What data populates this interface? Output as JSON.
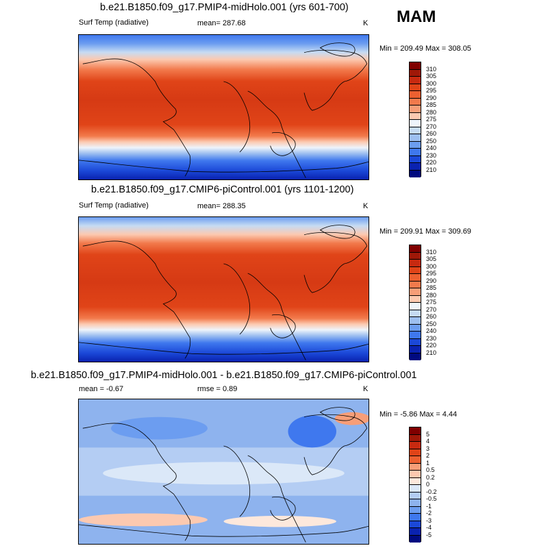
{
  "season": "MAM",
  "panels": [
    {
      "title": "b.e21.B1850.f09_g17.PMIP4-midHolo.001 (yrs 601-700)",
      "variable": "Surf Temp (radiative)",
      "mean_label": "mean= 287.68",
      "rmse_label": "",
      "units": "K",
      "minmax": "Min = 209.49 Max = 308.05",
      "colorbar_labels": [
        "310",
        "305",
        "300",
        "295",
        "290",
        "285",
        "280",
        "275",
        "270",
        "260",
        "250",
        "240",
        "230",
        "220",
        "210"
      ],
      "colors": [
        "#800000",
        "#a01808",
        "#c82a10",
        "#e04418",
        "#ec6030",
        "#f27a4c",
        "#f79e78",
        "#fcc9b0",
        "#eef4fb",
        "#c6dbf3",
        "#9dbff0",
        "#6c9df0",
        "#3f78ee",
        "#1b48d8",
        "#0a22b0",
        "#000a80"
      ]
    },
    {
      "title": "b.e21.B1850.f09_g17.CMIP6-piControl.001 (yrs 1101-1200)",
      "variable": "Surf Temp (radiative)",
      "mean_label": "mean= 288.35",
      "rmse_label": "",
      "units": "K",
      "minmax": "Min = 209.91 Max = 309.69",
      "colorbar_labels": [
        "310",
        "305",
        "300",
        "295",
        "290",
        "285",
        "280",
        "275",
        "270",
        "260",
        "250",
        "240",
        "230",
        "220",
        "210"
      ],
      "colors": [
        "#800000",
        "#a01808",
        "#c82a10",
        "#e04418",
        "#ec6030",
        "#f27a4c",
        "#f79e78",
        "#fcc9b0",
        "#eef4fb",
        "#c6dbf3",
        "#9dbff0",
        "#6c9df0",
        "#3f78ee",
        "#1b48d8",
        "#0a22b0",
        "#000a80"
      ]
    },
    {
      "title": "b.e21.B1850.f09_g17.PMIP4-midHolo.001 - b.e21.B1850.f09_g17.CMIP6-piControl.001",
      "variable": "",
      "mean_label": "mean =  -0.67",
      "rmse_label": "rmse =   0.89",
      "units": "K",
      "minmax": "Min =  -5.86 Max =   4.44",
      "colorbar_labels": [
        "5",
        "4",
        "3",
        "2",
        "1",
        "0.5",
        "0.2",
        "0",
        "-0.2",
        "-0.5",
        "-1",
        "-2",
        "-3",
        "-4",
        "-5"
      ],
      "colors": [
        "#800000",
        "#a01808",
        "#c82a10",
        "#e04418",
        "#ec6030",
        "#f79e78",
        "#fcc9b0",
        "#fde8dc",
        "#dbe8f8",
        "#b4cdf3",
        "#8eb3ee",
        "#6c9df0",
        "#3f78ee",
        "#1b48d8",
        "#0a22b0",
        "#000a80"
      ]
    }
  ]
}
